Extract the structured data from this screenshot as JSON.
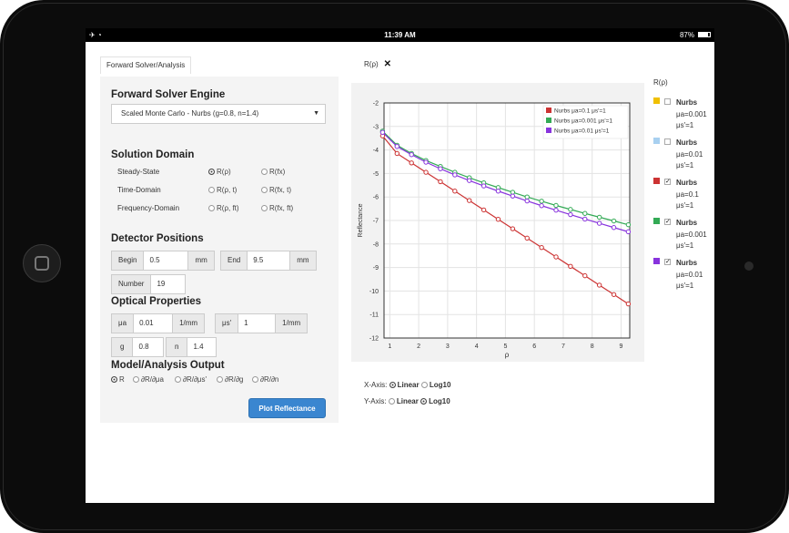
{
  "status": {
    "time": "11:39 AM",
    "battery": "87%",
    "battery_level": 0.87
  },
  "tabs": {
    "left": "Forward Solver/Analysis",
    "right": "R(ρ)"
  },
  "engine": {
    "title": "Forward Solver Engine",
    "selected": "Scaled Monte Carlo - Nurbs (g=0.8, n=1.4)"
  },
  "domain": {
    "title": "Solution Domain",
    "rows": [
      {
        "label": "Steady-State",
        "opt1": "R(ρ)",
        "opt2": "R(fx)"
      },
      {
        "label": "Time-Domain",
        "opt1": "R(ρ, t)",
        "opt2": "R(fx, t)"
      },
      {
        "label": "Frequency-Domain",
        "opt1": "R(ρ, ft)",
        "opt2": "R(fx, ft)"
      }
    ]
  },
  "detector": {
    "title": "Detector Positions",
    "begin_label": "Begin",
    "begin_value": "0.5",
    "begin_unit": "mm",
    "end_label": "End",
    "end_value": "9.5",
    "end_unit": "mm",
    "number_label": "Number",
    "number_value": "19"
  },
  "optical": {
    "title": "Optical Properties",
    "mua_label": "μa",
    "mua_value": "0.01",
    "mua_unit": "1/mm",
    "musp_label": "μs'",
    "musp_value": "1",
    "musp_unit": "1/mm",
    "g_label": "g",
    "g_value": "0.8",
    "n_label": "n",
    "n_value": "1.4"
  },
  "output": {
    "title": "Model/Analysis Output",
    "options": [
      "R",
      "∂R/∂μa",
      "∂R/∂μs'",
      "∂R/∂g",
      "∂R/∂n"
    ]
  },
  "plot_button": "Plot Reflectance",
  "axis_options": {
    "x_label": "X-Axis:",
    "y_label": "Y-Axis:",
    "linear": "Linear",
    "log10": "Log10",
    "x_selected": "Linear",
    "y_selected": "Log10"
  },
  "legend_panel": {
    "title": "R(ρ)",
    "items": [
      {
        "name": "Nurbs",
        "line1": "μa=0.001",
        "line2": "μs'=1",
        "color": "#f0c000",
        "checked": false
      },
      {
        "name": "Nurbs",
        "line1": "μa=0.01",
        "line2": "μs'=1",
        "color": "#a8d0f0",
        "checked": false
      },
      {
        "name": "Nurbs",
        "line1": "μa=0.1",
        "line2": "μs'=1",
        "color": "#cc3333",
        "checked": true
      },
      {
        "name": "Nurbs",
        "line1": "μa=0.001",
        "line2": "μs'=1",
        "color": "#33aa55",
        "checked": true
      },
      {
        "name": "Nurbs",
        "line1": "μa=0.01",
        "line2": "μs'=1",
        "color": "#8833dd",
        "checked": true
      }
    ]
  },
  "chart_data": {
    "type": "line",
    "xlabel": "ρ",
    "ylabel": "Reflectance",
    "xlim": [
      0.8,
      9.3
    ],
    "ylim": [
      -12,
      -2
    ],
    "xticks": [
      "1",
      "2",
      "3",
      "4",
      "5",
      "6",
      "7",
      "8",
      "9"
    ],
    "yticks": [
      "-2",
      "-3",
      "-4",
      "-5",
      "-6",
      "-7",
      "-8",
      "-9",
      "-10",
      "-11",
      "-12"
    ],
    "grid": true,
    "legend_position": "top-right",
    "x": [
      0.75,
      1.25,
      1.75,
      2.25,
      2.75,
      3.25,
      3.75,
      4.25,
      4.75,
      5.25,
      5.75,
      6.25,
      6.75,
      7.25,
      7.75,
      8.25,
      8.75,
      9.25
    ],
    "series": [
      {
        "name": "Nurbs μa=0.1 μs'=1",
        "color": "#cc3333",
        "values": [
          -3.4,
          -4.15,
          -4.55,
          -4.95,
          -5.35,
          -5.75,
          -6.15,
          -6.55,
          -6.95,
          -7.35,
          -7.75,
          -8.15,
          -8.55,
          -8.95,
          -9.35,
          -9.75,
          -10.15,
          -10.55
        ]
      },
      {
        "name": "Nurbs μa=0.001 μs'=1",
        "color": "#33aa55",
        "values": [
          -3.2,
          -3.8,
          -4.15,
          -4.45,
          -4.7,
          -4.95,
          -5.18,
          -5.4,
          -5.6,
          -5.8,
          -6.0,
          -6.18,
          -6.36,
          -6.53,
          -6.7,
          -6.86,
          -7.02,
          -7.18
        ]
      },
      {
        "name": "Nurbs μa=0.01 μs'=1",
        "color": "#8833dd",
        "values": [
          -3.25,
          -3.85,
          -4.2,
          -4.52,
          -4.8,
          -5.06,
          -5.3,
          -5.53,
          -5.75,
          -5.96,
          -6.17,
          -6.37,
          -6.56,
          -6.75,
          -6.94,
          -7.12,
          -7.3,
          -7.48
        ]
      }
    ]
  }
}
